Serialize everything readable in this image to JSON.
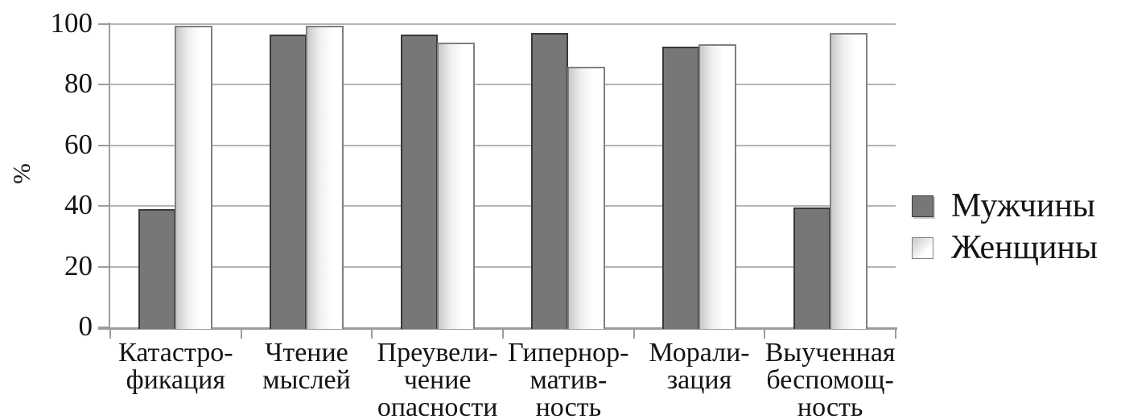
{
  "chart_data": {
    "type": "bar",
    "title": "",
    "xlabel": "",
    "ylabel": "%",
    "ylim": [
      0,
      100
    ],
    "yticks": [
      0,
      20,
      40,
      60,
      80,
      100
    ],
    "grid": true,
    "legend_position": "right",
    "categories": [
      "Катастрофикация",
      "Чтение мыслей",
      "Преувеличение опасности",
      "Гипернормативность",
      "Морализация",
      "Выученная беспомощность"
    ],
    "category_lines": [
      [
        "Катастро-",
        "фикация"
      ],
      [
        "Чтение",
        "мыслей"
      ],
      [
        "Преувели-",
        "чение",
        "опасности"
      ],
      [
        "Гипернор-",
        "матив-",
        "ность"
      ],
      [
        "Морали-",
        "зация"
      ],
      [
        "Выученная",
        "беспомощ-",
        "ность"
      ]
    ],
    "series": [
      {
        "name": "Мужчины",
        "values": [
          39,
          96.5,
          96.5,
          97,
          92.5,
          39.5
        ]
      },
      {
        "name": "Женщины",
        "values": [
          99.5,
          99.5,
          94,
          86,
          93.5,
          97
        ]
      }
    ]
  },
  "colors": {
    "bar_gray": "#77777a",
    "bar_gray_border": "#39393c",
    "bar_white": "#ffffff",
    "bar_white_gradient_start": "#c9c9c9",
    "bar_white_border": "#808080",
    "gridline": "#b4b4b4",
    "axis": "#9c9c9c",
    "text": "#141414",
    "legend_swatch_shadow": "#c8c8c8"
  }
}
